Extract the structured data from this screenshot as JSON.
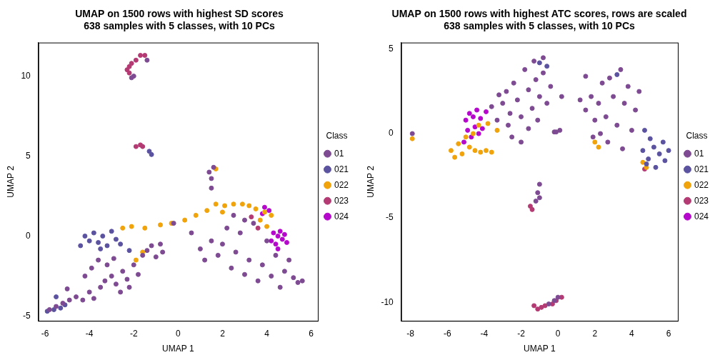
{
  "chart_data": [
    {
      "type": "scatter",
      "title": [
        "UMAP on 1500 rows with highest SD scores",
        "638 samples with 5 classes, with 10 PCs"
      ],
      "x_label": "UMAP 1",
      "y_label": "UMAP 2",
      "legend": "right",
      "legend_title": "Class",
      "grid": false,
      "marker": "circle",
      "xlim": [
        -6.3,
        6.3
      ],
      "xticks": [
        -6,
        -4,
        -2,
        0,
        2,
        4,
        6
      ],
      "ylim": [
        -5.3,
        12.1
      ],
      "yticks": [
        -5,
        0,
        5,
        10
      ],
      "series": [
        {
          "name": "01",
          "color": "#7e4b93",
          "values": [
            [
              -5.8,
              -4.6
            ],
            [
              -5.5,
              -4.4
            ],
            [
              -5.2,
              -4.2
            ],
            [
              -4.9,
              -4.0
            ],
            [
              -4.6,
              -3.8
            ],
            [
              -4.3,
              -4.0
            ],
            [
              -4.0,
              -3.5
            ],
            [
              -3.8,
              -3.9
            ],
            [
              -3.5,
              -3.2
            ],
            [
              -3.3,
              -2.8
            ],
            [
              -3.0,
              -2.5
            ],
            [
              -2.8,
              -3.0
            ],
            [
              -2.5,
              -2.2
            ],
            [
              -2.3,
              -2.7
            ],
            [
              -2.0,
              -1.8
            ],
            [
              -1.8,
              -2.4
            ],
            [
              -1.6,
              -1.2
            ],
            [
              -1.4,
              -0.9
            ],
            [
              -1.2,
              -0.6
            ],
            [
              -3.6,
              -1.5
            ],
            [
              -3.2,
              -1.8
            ],
            [
              -2.9,
              -1.4
            ],
            [
              -4.2,
              -2.5
            ],
            [
              -2.6,
              -3.5
            ],
            [
              -2.2,
              -3.2
            ],
            [
              -3.9,
              -2.0
            ],
            [
              -5.0,
              -3.3
            ],
            [
              -0.8,
              -0.5
            ],
            [
              -0.7,
              -1.0
            ],
            [
              -1.0,
              -1.3
            ],
            [
              1.0,
              -0.8
            ],
            [
              1.2,
              -1.5
            ],
            [
              1.5,
              -0.3
            ],
            [
              1.8,
              -1.2
            ],
            [
              2.0,
              -0.5
            ],
            [
              2.2,
              0.5
            ],
            [
              2.4,
              -2.0
            ],
            [
              2.6,
              -1.0
            ],
            [
              2.8,
              0.2
            ],
            [
              3.0,
              -2.4
            ],
            [
              3.2,
              -1.5
            ],
            [
              3.4,
              0.8
            ],
            [
              3.6,
              -2.8
            ],
            [
              3.8,
              -1.8
            ],
            [
              4.0,
              -0.3
            ],
            [
              4.2,
              -2.5
            ],
            [
              4.4,
              -1.2
            ],
            [
              4.6,
              -3.2
            ],
            [
              4.8,
              -2.2
            ],
            [
              5.0,
              -1.5
            ],
            [
              5.2,
              -2.6
            ],
            [
              5.4,
              -2.9
            ],
            [
              5.6,
              -2.8
            ],
            [
              2.5,
              1.3
            ],
            [
              3.0,
              1.0
            ],
            [
              0.6,
              0.2
            ],
            [
              -0.2,
              0.8
            ],
            [
              -2.1,
              9.9
            ],
            [
              -2.0,
              10.0
            ],
            [
              -1.4,
              11.0
            ],
            [
              1.4,
              4.0
            ],
            [
              1.5,
              3.6
            ],
            [
              1.6,
              4.3
            ],
            [
              1.5,
              3.0
            ]
          ]
        },
        {
          "name": "021",
          "color": "#5b53a0",
          "values": [
            [
              -4.2,
              0.0
            ],
            [
              -4.0,
              -0.3
            ],
            [
              -3.8,
              0.2
            ],
            [
              -3.6,
              -0.4
            ],
            [
              -3.4,
              0.0
            ],
            [
              -3.2,
              -0.6
            ],
            [
              -3.0,
              0.3
            ],
            [
              -2.8,
              -0.2
            ],
            [
              -2.6,
              -0.5
            ],
            [
              -3.5,
              -0.8
            ],
            [
              -4.4,
              -0.6
            ],
            [
              -5.9,
              -4.7
            ],
            [
              -5.6,
              -4.6
            ],
            [
              -5.3,
              -4.5
            ],
            [
              -5.1,
              -4.3
            ],
            [
              -5.5,
              -3.8
            ],
            [
              -1.3,
              5.3
            ],
            [
              -1.2,
              5.1
            ],
            [
              -2.2,
              -0.9
            ]
          ]
        },
        {
          "name": "022",
          "color": "#f0a30a",
          "values": [
            [
              -2.5,
              0.5
            ],
            [
              -2.1,
              0.6
            ],
            [
              -1.5,
              0.5
            ],
            [
              -0.8,
              0.7
            ],
            [
              -0.3,
              0.8
            ],
            [
              0.3,
              1.0
            ],
            [
              0.8,
              1.3
            ],
            [
              1.3,
              1.6
            ],
            [
              1.7,
              2.0
            ],
            [
              2.1,
              1.9
            ],
            [
              2.5,
              2.0
            ],
            [
              2.9,
              2.0
            ],
            [
              3.2,
              1.9
            ],
            [
              3.5,
              1.7
            ],
            [
              3.9,
              1.5
            ],
            [
              4.2,
              1.3
            ],
            [
              3.7,
              1.0
            ],
            [
              4.0,
              0.6
            ],
            [
              1.7,
              4.2
            ],
            [
              -1.6,
              -1.0
            ],
            [
              -1.9,
              -1.5
            ],
            [
              2.0,
              1.5
            ]
          ]
        },
        {
          "name": "023",
          "color": "#b43a73",
          "values": [
            [
              -2.3,
              10.4
            ],
            [
              -2.2,
              10.6
            ],
            [
              -2.1,
              10.8
            ],
            [
              -1.9,
              11.0
            ],
            [
              -1.7,
              11.3
            ],
            [
              -1.5,
              11.3
            ],
            [
              -2.2,
              10.2
            ],
            [
              -1.9,
              5.6
            ],
            [
              -1.7,
              5.7
            ],
            [
              -1.6,
              5.6
            ],
            [
              3.3,
              1.2
            ],
            [
              3.6,
              0.5
            ]
          ]
        },
        {
          "name": "024",
          "color": "#b608cc",
          "values": [
            [
              3.8,
              1.4
            ],
            [
              4.1,
              1.6
            ],
            [
              3.9,
              1.8
            ],
            [
              4.3,
              0.2
            ],
            [
              4.5,
              0.0
            ],
            [
              4.7,
              -0.2
            ],
            [
              4.4,
              -0.5
            ],
            [
              4.8,
              0.1
            ],
            [
              4.6,
              0.3
            ],
            [
              4.2,
              -0.3
            ],
            [
              4.9,
              -0.4
            ],
            [
              4.5,
              -0.8
            ]
          ]
        }
      ]
    },
    {
      "type": "scatter",
      "title": [
        "UMAP on 1500 rows with highest ATC scores, rows are scaled",
        "638 samples with 5 classes, with 10 PCs"
      ],
      "x_label": "UMAP 1",
      "y_label": "UMAP 2",
      "legend": "right",
      "legend_title": "Class",
      "grid": false,
      "marker": "circle",
      "xlim": [
        -8.5,
        6.5
      ],
      "xticks": [
        -8,
        -6,
        -4,
        -2,
        0,
        2,
        4,
        6
      ],
      "ylim": [
        -11.1,
        5.4
      ],
      "yticks": [
        -10,
        -5,
        0,
        5
      ],
      "series": [
        {
          "name": "01",
          "color": "#7e4b93",
          "values": [
            [
              -3.2,
              2.3
            ],
            [
              -3.0,
              1.8
            ],
            [
              -2.8,
              2.5
            ],
            [
              -2.6,
              1.2
            ],
            [
              -2.4,
              3.0
            ],
            [
              -2.2,
              2.0
            ],
            [
              -2.0,
              1.0
            ],
            [
              -1.8,
              3.8
            ],
            [
              -1.6,
              2.6
            ],
            [
              -1.4,
              1.5
            ],
            [
              -1.2,
              3.2
            ],
            [
              -1.0,
              2.2
            ],
            [
              -0.8,
              3.6
            ],
            [
              -0.6,
              1.8
            ],
            [
              -0.4,
              2.8
            ],
            [
              -2.7,
              0.5
            ],
            [
              -3.3,
              0.8
            ],
            [
              -2.5,
              -0.2
            ],
            [
              -1.6,
              0.3
            ],
            [
              -1.1,
              0.8
            ],
            [
              0.2,
              2.2
            ],
            [
              -0.2,
              0.1
            ],
            [
              -1.3,
              4.3
            ],
            [
              -0.8,
              4.5
            ],
            [
              -3.6,
              1.6
            ],
            [
              -2.0,
              -0.5
            ],
            [
              1.2,
              2.0
            ],
            [
              1.5,
              1.4
            ],
            [
              1.8,
              2.2
            ],
            [
              2.0,
              0.8
            ],
            [
              2.2,
              1.8
            ],
            [
              2.4,
              3.0
            ],
            [
              2.6,
              1.0
            ],
            [
              2.8,
              3.3
            ],
            [
              3.0,
              2.2
            ],
            [
              3.2,
              0.5
            ],
            [
              3.4,
              3.8
            ],
            [
              3.6,
              1.8
            ],
            [
              3.8,
              2.8
            ],
            [
              4.0,
              0.2
            ],
            [
              4.2,
              1.4
            ],
            [
              2.7,
              -0.5
            ],
            [
              1.9,
              -0.2
            ],
            [
              3.5,
              -0.9
            ],
            [
              4.4,
              2.5
            ],
            [
              2.3,
              0.0
            ],
            [
              1.5,
              3.4
            ],
            [
              -1.0,
              -3.0
            ],
            [
              -1.1,
              -3.5
            ],
            [
              -1.2,
              -4.0
            ],
            [
              -1.0,
              -3.8
            ],
            [
              -7.9,
              0.0
            ],
            [
              0.0,
              -9.7
            ],
            [
              -0.5,
              -10.1
            ],
            [
              -0.2,
              -9.9
            ],
            [
              0.1,
              0.2
            ],
            [
              -0.1,
              0.1
            ]
          ]
        },
        {
          "name": "021",
          "color": "#5b53a0",
          "values": [
            [
              4.6,
              -1.0
            ],
            [
              4.9,
              -1.5
            ],
            [
              5.2,
              -0.8
            ],
            [
              5.5,
              -1.2
            ],
            [
              5.8,
              -1.6
            ],
            [
              6.0,
              -1.0
            ],
            [
              5.3,
              -2.0
            ],
            [
              5.0,
              -0.3
            ],
            [
              5.7,
              -0.5
            ],
            [
              4.7,
              0.2
            ],
            [
              4.8,
              -1.8
            ],
            [
              -1.0,
              4.2
            ],
            [
              -0.6,
              4.0
            ],
            [
              3.2,
              3.5
            ]
          ]
        },
        {
          "name": "022",
          "color": "#f0a30a",
          "values": [
            [
              -5.8,
              -1.0
            ],
            [
              -5.6,
              -1.4
            ],
            [
              -5.4,
              -0.6
            ],
            [
              -5.2,
              -1.2
            ],
            [
              -4.8,
              -0.8
            ],
            [
              -4.5,
              -1.0
            ],
            [
              -4.2,
              -1.1
            ],
            [
              -3.9,
              -1.0
            ],
            [
              -3.6,
              -1.1
            ],
            [
              -4.6,
              0.0
            ],
            [
              -4.3,
              0.5
            ],
            [
              -3.8,
              0.6
            ],
            [
              -3.3,
              0.2
            ],
            [
              -5.0,
              -0.2
            ],
            [
              -7.9,
              -0.3
            ],
            [
              2.0,
              -0.5
            ],
            [
              2.2,
              -0.8
            ],
            [
              4.8,
              -2.0
            ],
            [
              4.6,
              -1.7
            ]
          ]
        },
        {
          "name": "023",
          "color": "#b43a73",
          "values": [
            [
              -1.3,
              -10.2
            ],
            [
              -1.1,
              -10.4
            ],
            [
              -0.9,
              -10.3
            ],
            [
              -0.7,
              -10.2
            ],
            [
              -0.1,
              -9.9
            ],
            [
              0.2,
              -9.7
            ],
            [
              -1.5,
              -4.3
            ],
            [
              -1.4,
              -4.5
            ],
            [
              -0.3,
              -10.1
            ],
            [
              4.7,
              -2.1
            ]
          ]
        },
        {
          "name": "024",
          "color": "#b608cc",
          "values": [
            [
              -5.0,
              0.8
            ],
            [
              -4.8,
              1.2
            ],
            [
              -4.6,
              1.0
            ],
            [
              -4.4,
              1.4
            ],
            [
              -4.2,
              0.9
            ],
            [
              -4.5,
              0.4
            ],
            [
              -4.9,
              0.2
            ],
            [
              -4.1,
              0.3
            ],
            [
              -4.7,
              -0.2
            ],
            [
              -4.3,
              0.0
            ],
            [
              -3.9,
              1.3
            ],
            [
              -5.1,
              -0.5
            ]
          ]
        }
      ]
    }
  ]
}
